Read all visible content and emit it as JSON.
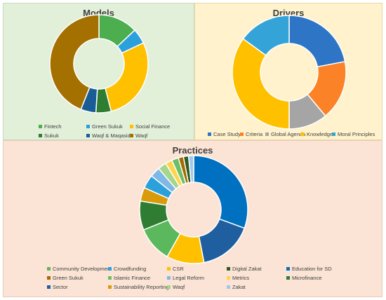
{
  "chart_data": [
    {
      "type": "pie",
      "title": "Models",
      "categories": [
        "Fintech",
        "Green Sukuk",
        "Social Finance",
        "Sukuk",
        "Waqf & Maqasid",
        "Waqf"
      ],
      "values": [
        13,
        5,
        28,
        5,
        5,
        44
      ],
      "colors": [
        "#4cae4f",
        "#2ca0db",
        "#ffc000",
        "#2e7d32",
        "#1a5d96",
        "#a47000"
      ],
      "legend_position": "bottom"
    },
    {
      "type": "pie",
      "title": "Drivers",
      "categories": [
        "Case Study",
        "Criteria",
        "Global Agenda",
        "Knowledge",
        "Moral Principles"
      ],
      "values": [
        22,
        17,
        11,
        35,
        15
      ],
      "colors": [
        "#2e75c6",
        "#fb8226",
        "#a5a5a5",
        "#ffc000",
        "#33a3d8"
      ],
      "legend_position": "bottom"
    },
    {
      "type": "pie",
      "title": "Practices",
      "categories": [
        "Community Development",
        "Crowdfunding",
        "CSR",
        "Digital Zakat",
        "Education for SD",
        "Green Sukuk",
        "Islamic Finance",
        "Legal Reform",
        "Metrics",
        "Microfinance",
        "Sector",
        "Sustainability Reporting",
        "Waqf",
        "Zakat"
      ],
      "values": [
        10.5,
        4,
        11,
        1.5,
        30,
        1.5,
        2,
        3,
        2,
        8.5,
        16,
        4,
        2.5,
        1.5
      ],
      "slice_order": [
        "Education for SD",
        "Sector",
        "CSR",
        "Community Development",
        "Microfinance",
        "Sustainability Reporting",
        "Crowdfunding",
        "Legal Reform",
        "Waqf",
        "Metrics",
        "Islamic Finance",
        "Green Sukuk",
        "Digital Zakat",
        "Zakat"
      ],
      "colors": [
        "#5cb85c",
        "#2ca0db",
        "#ffc000",
        "#2e5b24",
        "#0070c0",
        "#a56a00",
        "#6dbf67",
        "#7fb8e6",
        "#ffd44d",
        "#2f7d32",
        "#1f5fa0",
        "#d99a0b",
        "#a5d68a",
        "#9ec9ea"
      ],
      "legend_position": "bottom"
    }
  ]
}
